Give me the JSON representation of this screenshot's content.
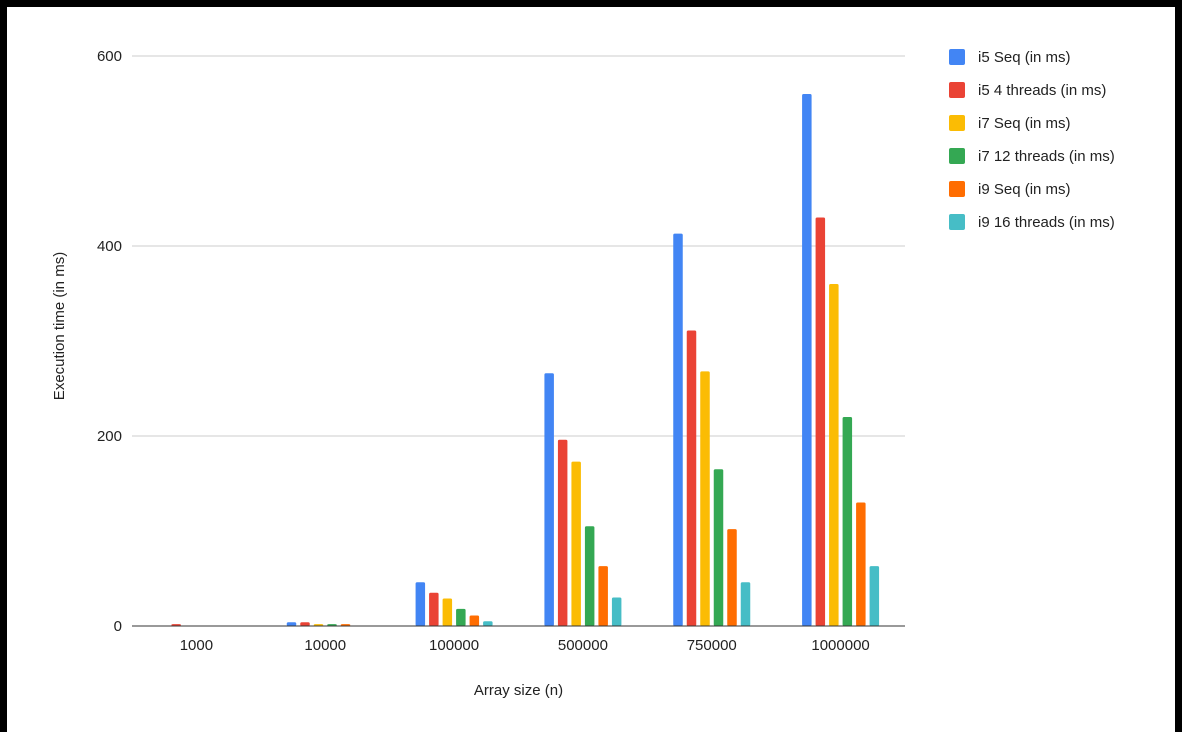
{
  "chart_data": {
    "type": "bar",
    "title": "",
    "xlabel": "Array size (n)",
    "ylabel": "Execution time (in ms)",
    "ylim": [
      0,
      600
    ],
    "yticks": [
      0,
      200,
      400,
      600
    ],
    "grid": true,
    "legend_position": "right",
    "categories": [
      "1000",
      "10000",
      "100000",
      "500000",
      "750000",
      "1000000"
    ],
    "series": [
      {
        "name": "i5 Seq (in ms)",
        "color": "#4285F4",
        "values": [
          0,
          4,
          46,
          266,
          413,
          560
        ]
      },
      {
        "name": "i5 4 threads (in ms)",
        "color": "#EA4335",
        "values": [
          2,
          4,
          35,
          196,
          311,
          430
        ]
      },
      {
        "name": "i7 Seq (in ms)",
        "color": "#FBBC04",
        "values": [
          0,
          2,
          29,
          173,
          268,
          360
        ]
      },
      {
        "name": "i7 12 threads (in ms)",
        "color": "#34A853",
        "values": [
          0,
          2,
          18,
          105,
          165,
          220
        ]
      },
      {
        "name": "i9 Seq (in ms)",
        "color": "#FF6D01",
        "values": [
          0,
          2,
          11,
          63,
          102,
          130
        ]
      },
      {
        "name": "i9 16 threads (in ms)",
        "color": "#46BDC6",
        "values": [
          0,
          0,
          5,
          30,
          46,
          63
        ]
      }
    ]
  }
}
